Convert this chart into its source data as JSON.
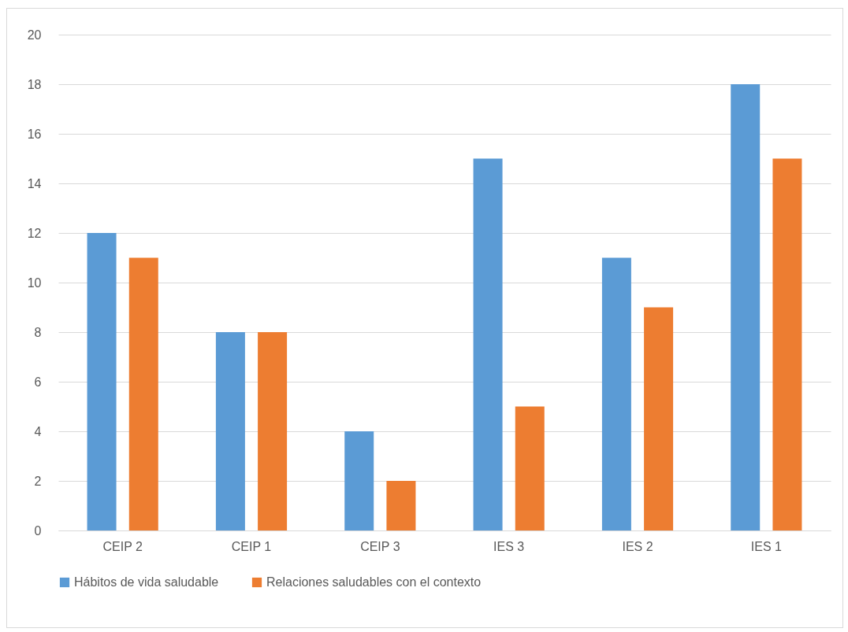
{
  "chart_data": {
    "type": "bar",
    "categories": [
      "CEIP 2",
      "CEIP 1",
      "CEIP 3",
      "IES 3",
      "IES 2",
      "IES 1"
    ],
    "series": [
      {
        "name": "Hábitos de vida saludable",
        "color": "#5b9bd5",
        "values": [
          12,
          8,
          4,
          15,
          11,
          18
        ]
      },
      {
        "name": "Relaciones saludables con el contexto",
        "color": "#ed7d31",
        "values": [
          11,
          8,
          2,
          5,
          9,
          15
        ]
      }
    ],
    "ylim": [
      0,
      20
    ],
    "yticks": [
      0,
      2,
      4,
      6,
      8,
      10,
      12,
      14,
      16,
      18,
      20
    ],
    "grid": "y",
    "legend": "bottom"
  }
}
